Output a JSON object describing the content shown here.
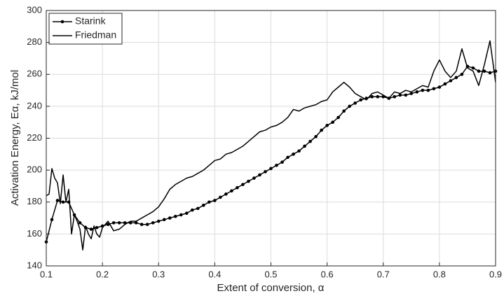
{
  "chart_data": {
    "type": "line",
    "xlabel": "Extent of conversion, α",
    "ylabel": "Activation Energy, Eα, kJ/mol",
    "xlim": [
      0.1,
      0.9
    ],
    "ylim": [
      140,
      300
    ],
    "xticks": [
      0.1,
      0.2,
      0.3,
      0.4,
      0.5,
      0.6,
      0.7,
      0.8,
      0.9
    ],
    "yticks": [
      140,
      160,
      180,
      200,
      220,
      240,
      260,
      280,
      300
    ],
    "grid": true,
    "legend": "upper left",
    "series": [
      {
        "name": "Starink",
        "color": "#000000",
        "marker": "o",
        "x": [
          0.1,
          0.11,
          0.12,
          0.13,
          0.14,
          0.15,
          0.16,
          0.17,
          0.18,
          0.19,
          0.2,
          0.21,
          0.22,
          0.23,
          0.24,
          0.25,
          0.26,
          0.27,
          0.28,
          0.29,
          0.3,
          0.31,
          0.32,
          0.33,
          0.34,
          0.35,
          0.36,
          0.37,
          0.38,
          0.39,
          0.4,
          0.41,
          0.42,
          0.43,
          0.44,
          0.45,
          0.46,
          0.47,
          0.48,
          0.49,
          0.5,
          0.51,
          0.52,
          0.53,
          0.54,
          0.55,
          0.56,
          0.57,
          0.58,
          0.59,
          0.6,
          0.61,
          0.62,
          0.63,
          0.64,
          0.65,
          0.66,
          0.67,
          0.68,
          0.69,
          0.7,
          0.71,
          0.72,
          0.73,
          0.74,
          0.75,
          0.76,
          0.77,
          0.78,
          0.79,
          0.8,
          0.81,
          0.82,
          0.83,
          0.84,
          0.85,
          0.86,
          0.87,
          0.88,
          0.89,
          0.9
        ],
        "values": [
          155,
          169,
          181,
          180,
          180,
          172,
          167,
          164,
          163,
          164,
          165,
          166,
          167,
          167,
          167,
          167,
          167,
          166,
          166,
          167,
          168,
          169,
          170,
          171,
          172,
          173,
          175,
          176,
          178,
          180,
          181,
          183,
          185,
          187,
          189,
          191,
          193,
          195,
          197,
          199,
          201,
          203,
          205,
          208,
          210,
          212,
          215,
          218,
          221,
          225,
          228,
          230,
          233,
          237,
          240,
          242,
          244,
          245,
          246,
          246,
          246,
          245,
          246,
          247,
          247,
          248,
          249,
          250,
          250,
          251,
          252,
          254,
          256,
          258,
          260,
          265,
          264,
          262,
          262,
          261,
          262
        ]
      },
      {
        "name": "Friedman",
        "color": "#000000",
        "x": [
          0.1,
          0.105,
          0.11,
          0.115,
          0.12,
          0.125,
          0.13,
          0.135,
          0.14,
          0.145,
          0.15,
          0.155,
          0.16,
          0.165,
          0.17,
          0.175,
          0.18,
          0.185,
          0.19,
          0.195,
          0.2,
          0.21,
          0.22,
          0.23,
          0.24,
          0.25,
          0.26,
          0.27,
          0.28,
          0.29,
          0.3,
          0.31,
          0.32,
          0.33,
          0.34,
          0.35,
          0.36,
          0.37,
          0.38,
          0.39,
          0.4,
          0.41,
          0.42,
          0.43,
          0.44,
          0.45,
          0.46,
          0.47,
          0.48,
          0.49,
          0.5,
          0.51,
          0.52,
          0.53,
          0.54,
          0.55,
          0.56,
          0.57,
          0.58,
          0.59,
          0.6,
          0.61,
          0.62,
          0.63,
          0.64,
          0.65,
          0.66,
          0.67,
          0.68,
          0.69,
          0.7,
          0.71,
          0.72,
          0.73,
          0.74,
          0.75,
          0.76,
          0.77,
          0.78,
          0.79,
          0.8,
          0.81,
          0.82,
          0.83,
          0.84,
          0.85,
          0.86,
          0.87,
          0.88,
          0.89,
          0.9
        ],
        "values": [
          184,
          185,
          201,
          195,
          192,
          179,
          197,
          180,
          188,
          160,
          172,
          168,
          163,
          150,
          165,
          160,
          157,
          165,
          160,
          158,
          164,
          168,
          162,
          163,
          166,
          168,
          168,
          170,
          172,
          174,
          177,
          182,
          188,
          191,
          193,
          195,
          196,
          198,
          200,
          203,
          206,
          207,
          210,
          211,
          213,
          215,
          218,
          221,
          224,
          225,
          227,
          228,
          230,
          233,
          238,
          237,
          239,
          240,
          241,
          243,
          244,
          249,
          252,
          255,
          252,
          248,
          246,
          244,
          248,
          249,
          247,
          245,
          249,
          248,
          250,
          249,
          251,
          253,
          252,
          262,
          269,
          262,
          258,
          262,
          276,
          264,
          262,
          253,
          266,
          281,
          255
        ]
      }
    ]
  }
}
